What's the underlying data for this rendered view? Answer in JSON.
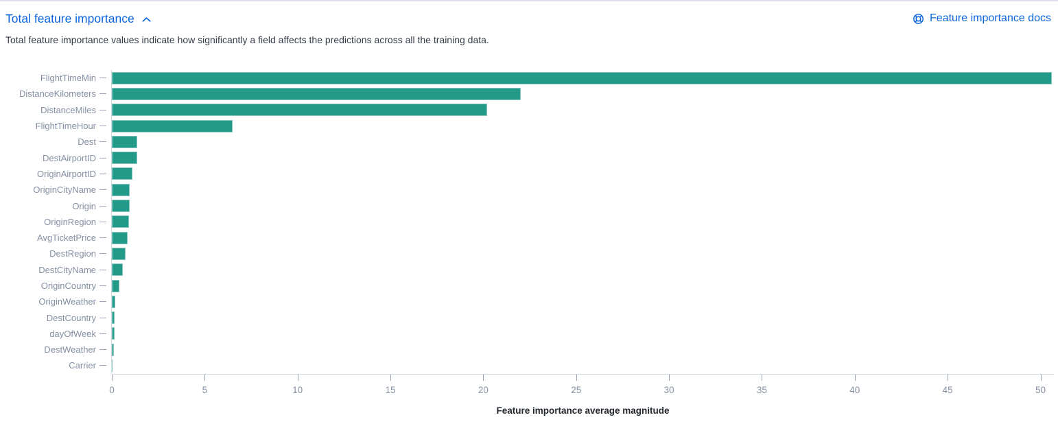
{
  "panel": {
    "title": "Total feature importance",
    "description": "Total feature importance values indicate how significantly a field affects the predictions across all the training data.",
    "docs_link": "Feature importance docs"
  },
  "icons": {
    "collapse": "chevron-up-icon",
    "docs": "lifebuoy-help-icon"
  },
  "colors": {
    "link": "#0b64dd",
    "bar": "#23998a",
    "axis_line": "#d3d7de",
    "tick_mark": "#98a2b3",
    "tick_label": "#8590a4",
    "body_text": "#353b48",
    "axis_title": "#23282e"
  },
  "chart_data": {
    "type": "bar",
    "orientation": "horizontal",
    "title": "",
    "xlabel": "Feature importance average magnitude",
    "ylabel": "",
    "xlim": [
      0,
      50.72
    ],
    "xticks": [
      0,
      5,
      10,
      15,
      20,
      25,
      30,
      35,
      40,
      45,
      50
    ],
    "grid": false,
    "legend": "none",
    "bar_color": "#23998a",
    "categories": [
      "FlightTimeMin",
      "DistanceKilometers",
      "DistanceMiles",
      "FlightTimeHour",
      "Dest",
      "DestAirportID",
      "OriginAirportID",
      "OriginCityName",
      "Origin",
      "OriginRegion",
      "AvgTicketPrice",
      "DestRegion",
      "DestCityName",
      "OriginCountry",
      "OriginWeather",
      "DestCountry",
      "dayOfWeek",
      "DestWeather",
      "Carrier"
    ],
    "values": [
      50.6,
      22.0,
      20.2,
      6.5,
      1.38,
      1.35,
      1.09,
      0.97,
      0.95,
      0.91,
      0.85,
      0.73,
      0.6,
      0.42,
      0.17,
      0.15,
      0.14,
      0.1,
      0.03
    ]
  }
}
